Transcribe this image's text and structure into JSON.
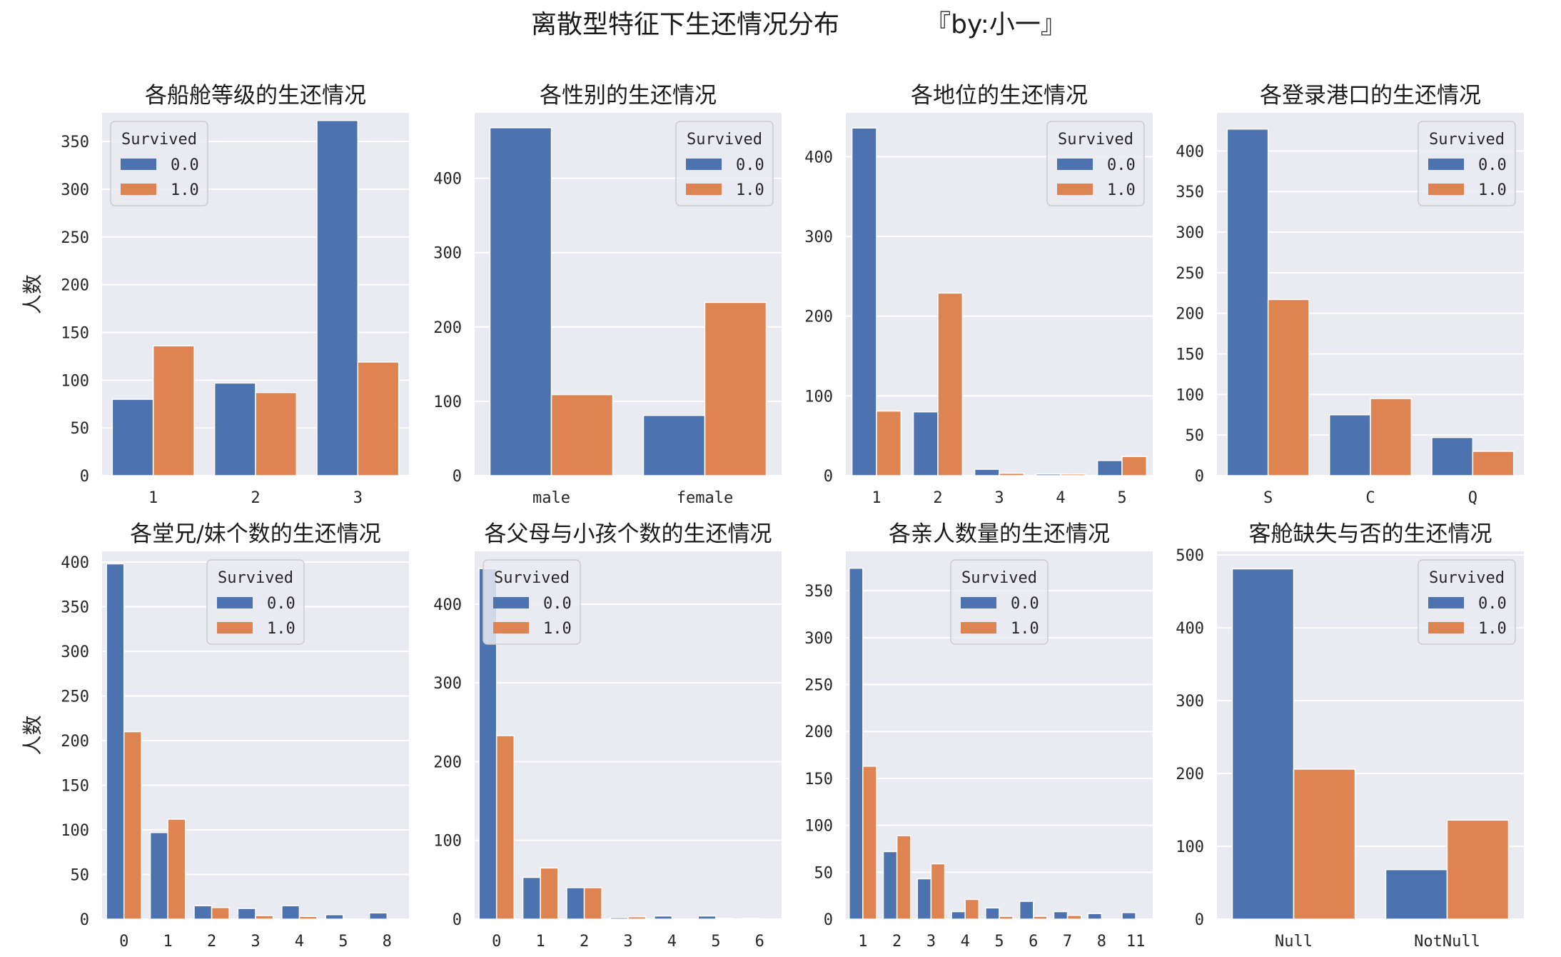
{
  "figure": {
    "suptitle": "离散型特征下生还情况分布",
    "author": "『by:小一』"
  },
  "style": {
    "series_colors": [
      "#4c72b0",
      "#dd8452"
    ],
    "axes_bg": "#eaeaf2",
    "grid_color": "#ffffff"
  },
  "chart_data": [
    {
      "type": "bar",
      "title": "各船舱等级的生还情况",
      "ylabel": "人数",
      "categories": [
        "1",
        "2",
        "3"
      ],
      "series": [
        {
          "name": "0.0",
          "values": [
            80,
            97,
            372
          ]
        },
        {
          "name": "1.0",
          "values": [
            136,
            87,
            119
          ]
        }
      ],
      "ylim": [
        0,
        380
      ],
      "yticks": [
        0,
        50,
        100,
        150,
        200,
        250,
        300,
        350
      ],
      "legend": {
        "title": "Survived",
        "placement": "upper left"
      }
    },
    {
      "type": "bar",
      "title": "各性别的生还情况",
      "ylabel": "",
      "categories": [
        "male",
        "female"
      ],
      "series": [
        {
          "name": "0.0",
          "values": [
            468,
            81
          ]
        },
        {
          "name": "1.0",
          "values": [
            109,
            233
          ]
        }
      ],
      "ylim": [
        0,
        488
      ],
      "yticks": [
        0,
        100,
        200,
        300,
        400
      ],
      "legend": {
        "title": "Survived",
        "placement": "upper right"
      }
    },
    {
      "type": "bar",
      "title": "各地位的生还情况",
      "ylabel": "",
      "categories": [
        "1",
        "2",
        "3",
        "4",
        "5"
      ],
      "series": [
        {
          "name": "0.0",
          "values": [
            436,
            80,
            8,
            2,
            19
          ]
        },
        {
          "name": "1.0",
          "values": [
            81,
            229,
            3,
            2,
            24
          ]
        }
      ],
      "ylim": [
        0,
        455
      ],
      "yticks": [
        0,
        100,
        200,
        300,
        400
      ],
      "legend": {
        "title": "Survived",
        "placement": "upper right"
      }
    },
    {
      "type": "bar",
      "title": "各登录港口的生还情况",
      "ylabel": "",
      "categories": [
        "S",
        "C",
        "Q"
      ],
      "series": [
        {
          "name": "0.0",
          "values": [
            427,
            75,
            47
          ]
        },
        {
          "name": "1.0",
          "values": [
            217,
            95,
            30
          ]
        }
      ],
      "ylim": [
        0,
        447
      ],
      "yticks": [
        0,
        50,
        100,
        150,
        200,
        250,
        300,
        350,
        400
      ],
      "legend": {
        "title": "Survived",
        "placement": "upper right"
      }
    },
    {
      "type": "bar",
      "title": "各堂兄/妹个数的生还情况",
      "ylabel": "人数",
      "categories": [
        "0",
        "1",
        "2",
        "3",
        "4",
        "5",
        "8"
      ],
      "series": [
        {
          "name": "0.0",
          "values": [
            398,
            97,
            15,
            12,
            15,
            5,
            7
          ]
        },
        {
          "name": "1.0",
          "values": [
            210,
            112,
            13,
            4,
            3,
            0,
            0
          ]
        }
      ],
      "ylim": [
        0,
        412
      ],
      "yticks": [
        0,
        50,
        100,
        150,
        200,
        250,
        300,
        350,
        400
      ],
      "legend": {
        "title": "Survived",
        "placement": "upper center"
      }
    },
    {
      "type": "bar",
      "title": "各父母与小孩个数的生还情况",
      "ylabel": "",
      "categories": [
        "0",
        "1",
        "2",
        "3",
        "4",
        "5",
        "6"
      ],
      "series": [
        {
          "name": "0.0",
          "values": [
            445,
            53,
            40,
            2,
            4,
            4,
            1
          ]
        },
        {
          "name": "1.0",
          "values": [
            233,
            65,
            40,
            3,
            0,
            1,
            0
          ]
        }
      ],
      "ylim": [
        0,
        467
      ],
      "yticks": [
        0,
        100,
        200,
        300,
        400
      ],
      "legend": {
        "title": "Survived",
        "placement": "upper left"
      }
    },
    {
      "type": "bar",
      "title": "各亲人数量的生还情况",
      "ylabel": "",
      "categories": [
        "1",
        "2",
        "3",
        "4",
        "5",
        "6",
        "7",
        "8",
        "11"
      ],
      "series": [
        {
          "name": "0.0",
          "values": [
            374,
            72,
            43,
            8,
            12,
            19,
            8,
            6,
            7
          ]
        },
        {
          "name": "1.0",
          "values": [
            163,
            89,
            59,
            21,
            3,
            3,
            4,
            0,
            0
          ]
        }
      ],
      "ylim": [
        0,
        392
      ],
      "yticks": [
        0,
        50,
        100,
        150,
        200,
        250,
        300,
        350
      ],
      "legend": {
        "title": "Survived",
        "placement": "upper center"
      }
    },
    {
      "type": "bar",
      "title": "客舱缺失与否的生还情况",
      "ylabel": "",
      "categories": [
        "Null",
        "NotNull"
      ],
      "series": [
        {
          "name": "0.0",
          "values": [
            481,
            68
          ]
        },
        {
          "name": "1.0",
          "values": [
            206,
            136
          ]
        }
      ],
      "ylim": [
        0,
        505
      ],
      "yticks": [
        0,
        100,
        200,
        300,
        400,
        500
      ],
      "legend": {
        "title": "Survived",
        "placement": "upper right"
      }
    }
  ]
}
